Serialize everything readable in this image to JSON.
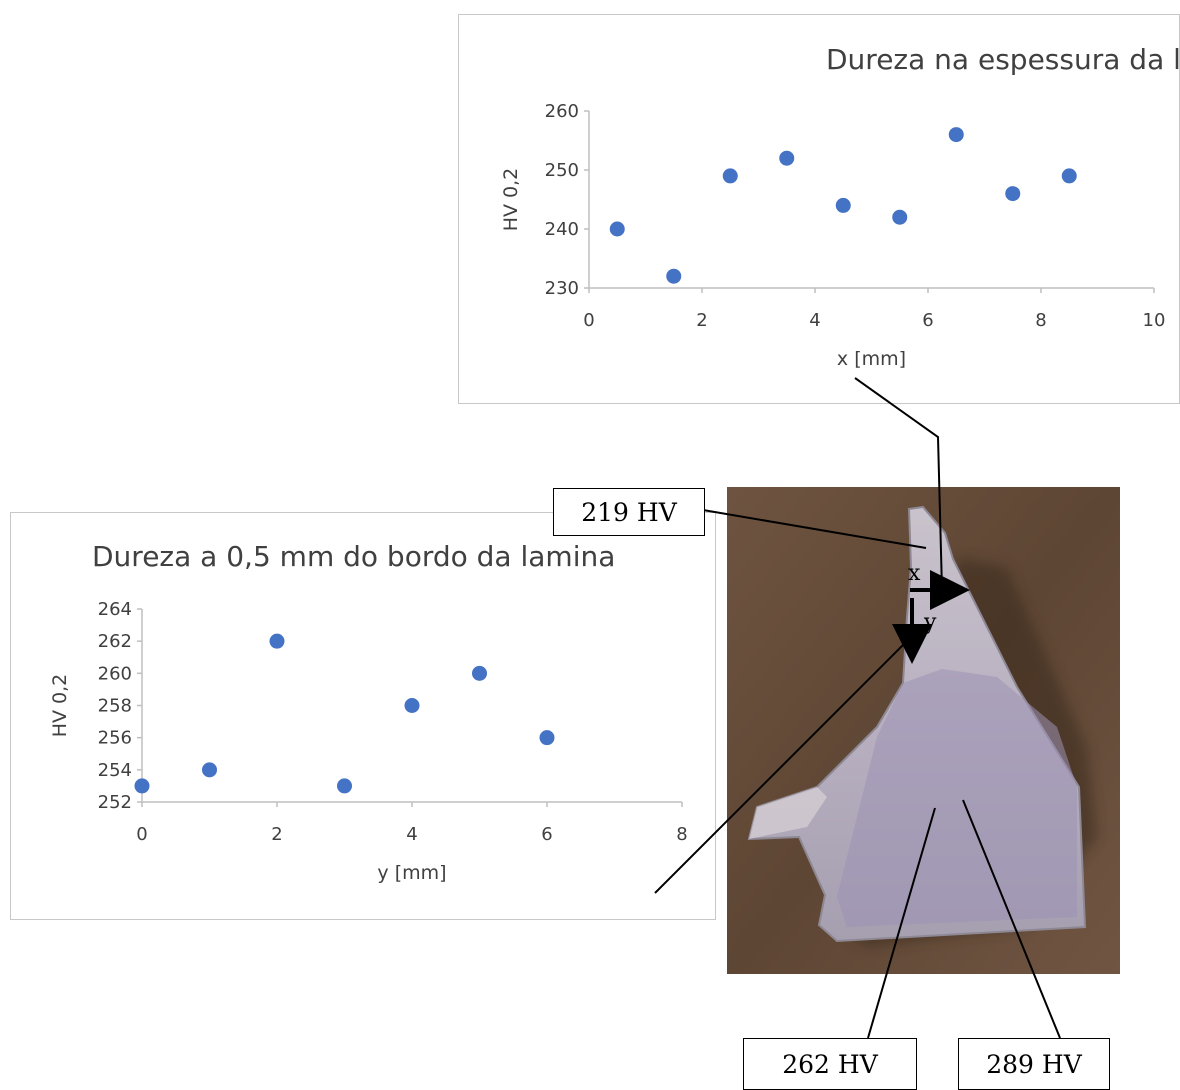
{
  "chart_data": [
    {
      "type": "scatter",
      "title": "Dureza na espessura da lamina",
      "xlabel": "x [mm]",
      "ylabel": "HV 0,2",
      "xlim": [
        0,
        10
      ],
      "ylim": [
        230,
        260
      ],
      "xticks": [
        0,
        2,
        4,
        6,
        8,
        10
      ],
      "yticks": [
        230,
        240,
        250,
        260
      ],
      "color": "#4472c4",
      "grid": false,
      "x": [
        0.5,
        1.5,
        2.5,
        3.5,
        4.5,
        5.5,
        6.5,
        7.5,
        8.5
      ],
      "y": [
        240,
        232,
        249,
        252,
        244,
        242,
        256,
        246,
        249
      ]
    },
    {
      "type": "scatter",
      "title": "Dureza a 0,5 mm do bordo da lamina",
      "xlabel": "y [mm]",
      "ylabel": "HV 0,2",
      "xlim": [
        0,
        8
      ],
      "ylim": [
        252,
        264
      ],
      "xticks": [
        0,
        2,
        4,
        6,
        8
      ],
      "yticks": [
        252,
        254,
        256,
        258,
        260,
        262,
        264
      ],
      "color": "#4472c4",
      "grid": false,
      "x": [
        0,
        1,
        2,
        3,
        4,
        5,
        6
      ],
      "y": [
        253,
        254,
        262,
        253,
        258,
        260,
        256
      ]
    }
  ],
  "photo": {
    "labels": {
      "top": "219 HV",
      "bottom_left": "262 HV",
      "bottom_right": "289 HV"
    },
    "axis_x": "x",
    "axis_y": "y"
  }
}
